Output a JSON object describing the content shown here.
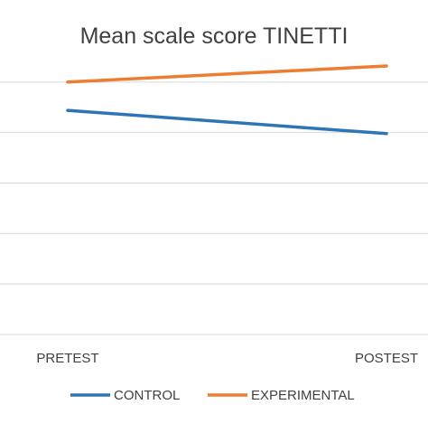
{
  "chart_data": {
    "type": "line",
    "title": "Mean scale score TINETTI",
    "categories": [
      "PRETEST",
      "POSTEST"
    ],
    "series": [
      {
        "name": "CONTROL",
        "values": [
          22.2,
          19.9
        ],
        "color": "#2e75b6"
      },
      {
        "name": "EXPERIMENTAL",
        "values": [
          25.0,
          26.6
        ],
        "color": "#ed7d31"
      }
    ],
    "ylim": [
      0,
      30
    ],
    "y_ticks_visible": false,
    "grid": true,
    "legend_position": "bottom"
  }
}
